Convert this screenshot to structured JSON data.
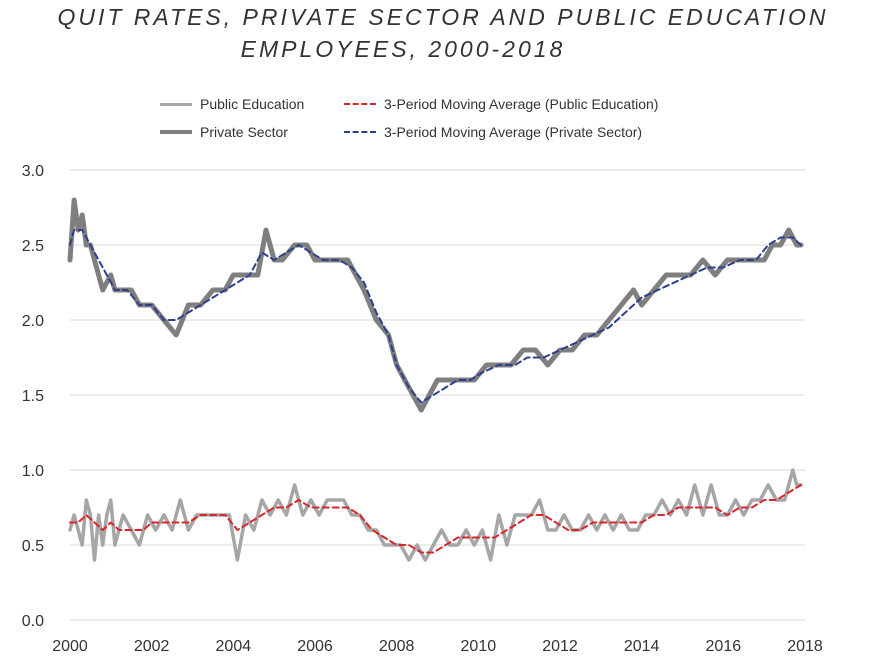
{
  "chart_data": {
    "type": "line",
    "title_line1": "QUIT RATES, PRIVATE SECTOR AND PUBLIC EDUCATION",
    "title_line2": "EMPLOYEES, 2000-2018",
    "xlabel": "",
    "ylabel": "",
    "xlim": [
      2000,
      2018
    ],
    "ylim": [
      0,
      3
    ],
    "grid": "horizontal",
    "legend_position": "top",
    "x_ticks": [
      "2000",
      "2002",
      "2004",
      "2006",
      "2008",
      "2010",
      "2012",
      "2014",
      "2016",
      "2018"
    ],
    "y_ticks": [
      "3.0",
      "2.5",
      "2.0",
      "1.5",
      "1.0",
      "0.5",
      "0.0"
    ],
    "legend": [
      {
        "label": "Public Education",
        "style": "solid-light"
      },
      {
        "label": "3-Period Moving Average (Public Education)",
        "style": "dashed-red"
      },
      {
        "label": "Private Sector",
        "style": "solid-dark"
      },
      {
        "label": "3-Period Moving Average (Private Sector)",
        "style": "dashed-blue"
      }
    ],
    "series": [
      {
        "name": "Private Sector",
        "color": "#7f7f7f",
        "x": [
          2000.0,
          2000.1,
          2000.2,
          2000.3,
          2000.4,
          2000.5,
          2000.6,
          2000.8,
          2001.0,
          2001.1,
          2001.3,
          2001.5,
          2001.7,
          2002.0,
          2002.3,
          2002.6,
          2002.9,
          2003.2,
          2003.5,
          2003.8,
          2004.0,
          2004.3,
          2004.6,
          2004.8,
          2005.0,
          2005.2,
          2005.5,
          2005.8,
          2006.0,
          2006.4,
          2006.8,
          2007.0,
          2007.2,
          2007.5,
          2007.8,
          2008.0,
          2008.2,
          2008.4,
          2008.6,
          2008.8,
          2009.0,
          2009.3,
          2009.6,
          2009.9,
          2010.2,
          2010.5,
          2010.8,
          2011.1,
          2011.4,
          2011.7,
          2012.0,
          2012.3,
          2012.6,
          2012.9,
          2013.2,
          2013.5,
          2013.8,
          2014.0,
          2014.3,
          2014.6,
          2014.9,
          2015.2,
          2015.5,
          2015.8,
          2016.1,
          2016.4,
          2016.7,
          2017.0,
          2017.2,
          2017.4,
          2017.6,
          2017.8,
          2017.9
        ],
        "values": [
          2.4,
          2.8,
          2.6,
          2.7,
          2.5,
          2.5,
          2.4,
          2.2,
          2.3,
          2.2,
          2.2,
          2.2,
          2.1,
          2.1,
          2.0,
          1.9,
          2.1,
          2.1,
          2.2,
          2.2,
          2.3,
          2.3,
          2.3,
          2.6,
          2.4,
          2.4,
          2.5,
          2.5,
          2.4,
          2.4,
          2.4,
          2.3,
          2.2,
          2.0,
          1.9,
          1.7,
          1.6,
          1.5,
          1.4,
          1.5,
          1.6,
          1.6,
          1.6,
          1.6,
          1.7,
          1.7,
          1.7,
          1.8,
          1.8,
          1.7,
          1.8,
          1.8,
          1.9,
          1.9,
          2.0,
          2.1,
          2.2,
          2.1,
          2.2,
          2.3,
          2.3,
          2.3,
          2.4,
          2.3,
          2.4,
          2.4,
          2.4,
          2.4,
          2.5,
          2.5,
          2.6,
          2.5,
          2.5
        ]
      },
      {
        "name": "3-Period Moving Average (Private Sector)",
        "color": "#2e3f8f",
        "x": [
          2000.0,
          2000.1,
          2000.3,
          2000.5,
          2000.7,
          2000.9,
          2001.1,
          2001.4,
          2001.7,
          2002.0,
          2002.3,
          2002.6,
          2002.9,
          2003.2,
          2003.5,
          2003.8,
          2004.1,
          2004.4,
          2004.7,
          2005.0,
          2005.3,
          2005.6,
          2005.9,
          2006.2,
          2006.6,
          2006.9,
          2007.2,
          2007.5,
          2007.8,
          2008.0,
          2008.3,
          2008.6,
          2008.9,
          2009.2,
          2009.5,
          2009.8,
          2010.1,
          2010.5,
          2010.9,
          2011.2,
          2011.6,
          2012.0,
          2012.4,
          2012.8,
          2013.2,
          2013.6,
          2014.0,
          2014.4,
          2014.8,
          2015.2,
          2015.6,
          2016.0,
          2016.4,
          2016.8,
          2017.1,
          2017.4,
          2017.7,
          2017.9
        ],
        "values": [
          2.5,
          2.6,
          2.6,
          2.5,
          2.4,
          2.3,
          2.2,
          2.2,
          2.1,
          2.1,
          2.0,
          2.0,
          2.05,
          2.1,
          2.15,
          2.2,
          2.25,
          2.3,
          2.45,
          2.4,
          2.45,
          2.5,
          2.45,
          2.4,
          2.4,
          2.35,
          2.25,
          2.05,
          1.9,
          1.7,
          1.55,
          1.45,
          1.5,
          1.55,
          1.6,
          1.6,
          1.65,
          1.7,
          1.7,
          1.75,
          1.75,
          1.8,
          1.85,
          1.9,
          1.95,
          2.05,
          2.15,
          2.2,
          2.25,
          2.3,
          2.35,
          2.35,
          2.4,
          2.4,
          2.5,
          2.55,
          2.55,
          2.5
        ]
      },
      {
        "name": "Public Education",
        "color": "#a6a6a6",
        "x": [
          2000.0,
          2000.1,
          2000.2,
          2000.3,
          2000.4,
          2000.5,
          2000.6,
          2000.7,
          2000.8,
          2000.9,
          2001.0,
          2001.1,
          2001.2,
          2001.3,
          2001.5,
          2001.7,
          2001.9,
          2002.1,
          2002.3,
          2002.5,
          2002.7,
          2002.9,
          2003.1,
          2003.3,
          2003.5,
          2003.7,
          2003.9,
          2004.1,
          2004.3,
          2004.5,
          2004.7,
          2004.9,
          2005.1,
          2005.3,
          2005.5,
          2005.7,
          2005.9,
          2006.1,
          2006.3,
          2006.5,
          2006.7,
          2006.9,
          2007.1,
          2007.3,
          2007.5,
          2007.7,
          2007.9,
          2008.1,
          2008.3,
          2008.5,
          2008.7,
          2008.9,
          2009.1,
          2009.3,
          2009.5,
          2009.7,
          2009.9,
          2010.1,
          2010.3,
          2010.5,
          2010.7,
          2010.9,
          2011.1,
          2011.3,
          2011.5,
          2011.7,
          2011.9,
          2012.1,
          2012.3,
          2012.5,
          2012.7,
          2012.9,
          2013.1,
          2013.3,
          2013.5,
          2013.7,
          2013.9,
          2014.1,
          2014.3,
          2014.5,
          2014.7,
          2014.9,
          2015.1,
          2015.3,
          2015.5,
          2015.7,
          2015.9,
          2016.1,
          2016.3,
          2016.5,
          2016.7,
          2016.9,
          2017.1,
          2017.3,
          2017.5,
          2017.7,
          2017.8,
          2017.9
        ],
        "values": [
          0.6,
          0.7,
          0.6,
          0.5,
          0.8,
          0.7,
          0.4,
          0.7,
          0.5,
          0.7,
          0.8,
          0.5,
          0.6,
          0.7,
          0.6,
          0.5,
          0.7,
          0.6,
          0.7,
          0.6,
          0.8,
          0.6,
          0.7,
          0.7,
          0.7,
          0.7,
          0.7,
          0.4,
          0.7,
          0.6,
          0.8,
          0.7,
          0.8,
          0.7,
          0.9,
          0.7,
          0.8,
          0.7,
          0.8,
          0.8,
          0.8,
          0.7,
          0.7,
          0.6,
          0.6,
          0.5,
          0.5,
          0.5,
          0.4,
          0.5,
          0.4,
          0.5,
          0.6,
          0.5,
          0.5,
          0.6,
          0.5,
          0.6,
          0.4,
          0.7,
          0.5,
          0.7,
          0.7,
          0.7,
          0.8,
          0.6,
          0.6,
          0.7,
          0.6,
          0.6,
          0.7,
          0.6,
          0.7,
          0.6,
          0.7,
          0.6,
          0.6,
          0.7,
          0.7,
          0.8,
          0.7,
          0.8,
          0.7,
          0.9,
          0.7,
          0.9,
          0.7,
          0.7,
          0.8,
          0.7,
          0.8,
          0.8,
          0.9,
          0.8,
          0.8,
          1.0,
          0.9,
          0.9
        ]
      },
      {
        "name": "3-Period Moving Average (Public Education)",
        "color": "#d9262b",
        "x": [
          2000.0,
          2000.2,
          2000.4,
          2000.6,
          2000.8,
          2001.0,
          2001.2,
          2001.4,
          2001.6,
          2001.8,
          2002.0,
          2002.3,
          2002.6,
          2002.9,
          2003.2,
          2003.5,
          2003.8,
          2004.1,
          2004.4,
          2004.7,
          2005.0,
          2005.3,
          2005.6,
          2005.9,
          2006.2,
          2006.5,
          2006.8,
          2007.1,
          2007.4,
          2007.7,
          2008.0,
          2008.3,
          2008.6,
          2008.9,
          2009.2,
          2009.5,
          2009.8,
          2010.1,
          2010.4,
          2010.7,
          2011.0,
          2011.3,
          2011.6,
          2011.9,
          2012.2,
          2012.5,
          2012.8,
          2013.1,
          2013.4,
          2013.7,
          2014.0,
          2014.3,
          2014.6,
          2014.9,
          2015.2,
          2015.5,
          2015.8,
          2016.1,
          2016.4,
          2016.7,
          2017.0,
          2017.3,
          2017.6,
          2017.9
        ],
        "values": [
          0.65,
          0.65,
          0.7,
          0.65,
          0.6,
          0.65,
          0.6,
          0.6,
          0.6,
          0.6,
          0.65,
          0.65,
          0.65,
          0.65,
          0.7,
          0.7,
          0.7,
          0.6,
          0.65,
          0.7,
          0.75,
          0.75,
          0.8,
          0.75,
          0.75,
          0.75,
          0.75,
          0.7,
          0.6,
          0.55,
          0.5,
          0.5,
          0.45,
          0.45,
          0.5,
          0.55,
          0.55,
          0.55,
          0.55,
          0.6,
          0.65,
          0.7,
          0.7,
          0.65,
          0.6,
          0.6,
          0.65,
          0.65,
          0.65,
          0.65,
          0.65,
          0.7,
          0.7,
          0.75,
          0.75,
          0.75,
          0.75,
          0.7,
          0.75,
          0.75,
          0.8,
          0.8,
          0.85,
          0.9
        ]
      }
    ]
  }
}
